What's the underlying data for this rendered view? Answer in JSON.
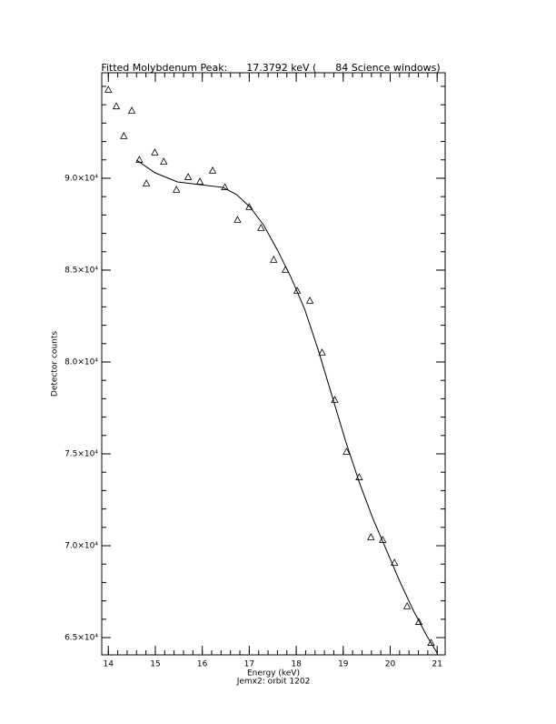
{
  "chart_data": {
    "type": "scatter",
    "title": "Fitted Molybdenum Peak:      17.3792 keV (      84 Science windows)",
    "xlabel": "Energy (keV)",
    "ylabel": "Detector counts",
    "subtitle": "Jemx2: orbit 1202",
    "xlim": [
      13.86,
      21.17
    ],
    "ylim": [
      64060,
      95740
    ],
    "xticks": [
      14,
      15,
      16,
      17,
      18,
      19,
      20,
      21
    ],
    "yticks": [
      {
        "value": 65000,
        "label": "6.5×10⁴"
      },
      {
        "value": 70000,
        "label": "7.0×10⁴"
      },
      {
        "value": 75000,
        "label": "7.5×10⁴"
      },
      {
        "value": 80000,
        "label": "8.0×10⁴"
      },
      {
        "value": 85000,
        "label": "8.5×10⁴"
      },
      {
        "value": 90000,
        "label": "9.0×10⁴"
      }
    ],
    "minor_ticks": 5,
    "series": [
      {
        "mode": "markers",
        "marker": "triangle",
        "color": "#000000",
        "x": [
          14.0,
          14.17,
          14.33,
          14.5,
          14.66,
          14.81,
          14.99,
          15.18,
          15.45,
          15.7,
          15.95,
          16.22,
          16.48,
          16.75,
          17.0,
          17.25,
          17.52,
          17.77,
          18.02,
          18.29,
          18.55,
          18.82,
          19.07,
          19.34,
          19.59,
          19.84,
          20.09,
          20.36,
          20.61,
          20.87
        ],
        "values": [
          94800,
          93900,
          92280,
          93660,
          90990,
          89700,
          91390,
          90890,
          89360,
          90050,
          89800,
          90400,
          89500,
          87720,
          88420,
          87280,
          85550,
          85000,
          83860,
          83320,
          80500,
          77920,
          75100,
          73710,
          70450,
          70300,
          69060,
          66690,
          65840,
          64700
        ]
      },
      {
        "mode": "line",
        "color": "#000000",
        "x": [
          14.6,
          14.99,
          15.47,
          15.95,
          16.44,
          16.73,
          17.02,
          17.31,
          17.6,
          17.89,
          18.18,
          18.47,
          18.76,
          19.05,
          19.34,
          19.63,
          19.92,
          20.21,
          20.5,
          20.79,
          21.0
        ],
        "values": [
          90990,
          90300,
          89800,
          89650,
          89500,
          89110,
          88420,
          87430,
          86090,
          84600,
          82870,
          80640,
          78170,
          75700,
          73470,
          71490,
          69760,
          68020,
          66440,
          65050,
          64160
        ]
      }
    ]
  }
}
